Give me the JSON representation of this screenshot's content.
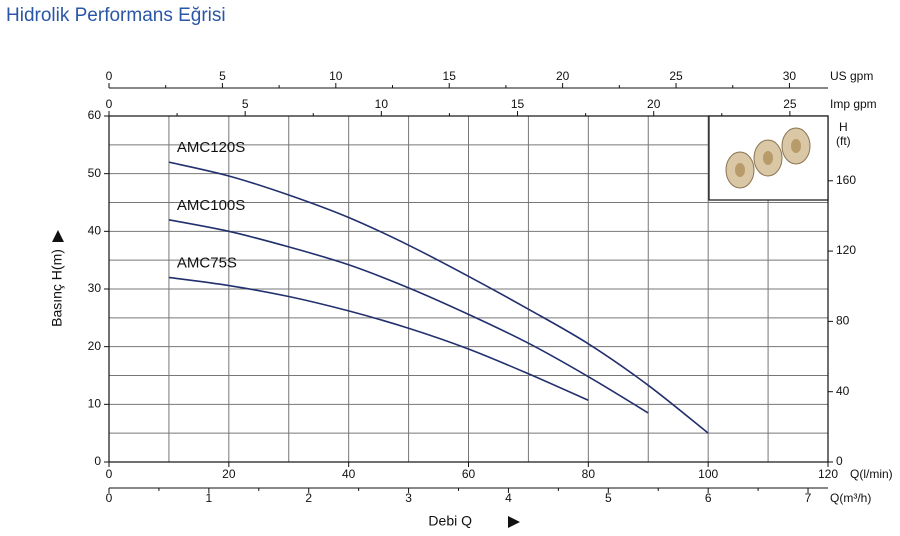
{
  "chart_data": {
    "type": "line",
    "title": "Hidrolik Performans Eğrisi",
    "x_label": "Debi Q",
    "y_label": "Basınç H(m)",
    "x_unit": "Q(l/min)",
    "xlim": [
      0,
      120
    ],
    "xticks": [
      0,
      20,
      40,
      60,
      80,
      100,
      120
    ],
    "ylim": [
      0,
      60
    ],
    "yticks": [
      0,
      10,
      20,
      30,
      40,
      50,
      60
    ],
    "y2_label": "H",
    "y2_unit": "(ft)",
    "y2lim": [
      0,
      196.85
    ],
    "y2ticks": [
      0,
      40,
      80,
      120,
      160
    ],
    "grid": true,
    "secondary_x_axes": [
      {
        "label": "US gpm",
        "lim": [
          0,
          31.7
        ],
        "ticks": [
          0,
          5,
          10,
          15,
          20,
          25,
          30
        ],
        "position": "top"
      },
      {
        "label": "Imp gpm",
        "lim": [
          0,
          26.4
        ],
        "ticks": [
          0,
          5,
          10,
          15,
          20,
          25
        ],
        "position": "top"
      },
      {
        "label": "Q(m³/h)",
        "lim": [
          0,
          7.2
        ],
        "ticks": [
          0,
          1,
          2,
          3,
          4,
          5,
          6,
          7
        ],
        "position": "bottom"
      }
    ],
    "series": [
      {
        "name": "AMC120S",
        "color": "#22306e",
        "x": [
          10,
          20,
          30,
          40,
          50,
          60,
          70,
          80,
          90,
          100
        ],
        "values": [
          52,
          49.6,
          46.3,
          42.4,
          37.6,
          32.2,
          26.5,
          20.5,
          13.3,
          5
        ]
      },
      {
        "name": "AMC100S",
        "color": "#22306e",
        "x": [
          10,
          20,
          30,
          40,
          50,
          60,
          70,
          80,
          90
        ],
        "values": [
          42,
          40,
          37.3,
          34.2,
          30.2,
          25.6,
          20.6,
          14.8,
          8.5
        ]
      },
      {
        "name": "AMC75S",
        "color": "#22306e",
        "x": [
          10,
          20,
          30,
          40,
          50,
          60,
          70,
          80
        ],
        "values": [
          32,
          30.6,
          28.7,
          26.2,
          23.2,
          19.6,
          15.3,
          10.7
        ]
      }
    ]
  }
}
